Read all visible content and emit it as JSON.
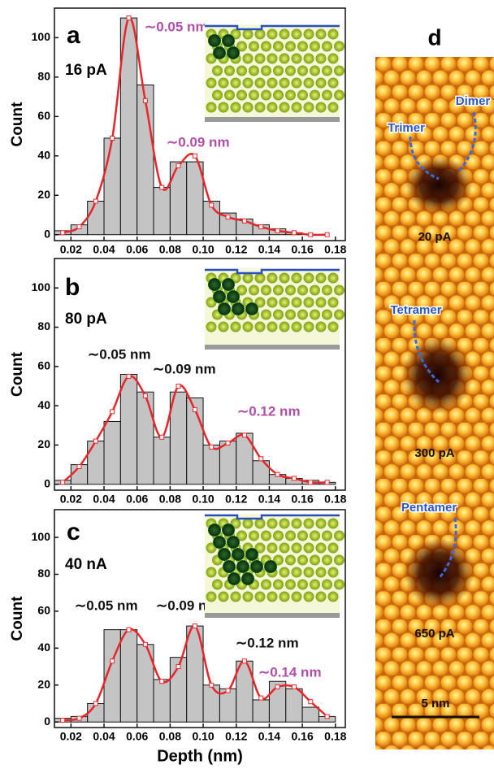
{
  "chart_data": [
    {
      "type": "histogram",
      "label": "a",
      "condition": "16 pA",
      "ylabel": "Count",
      "bins": [
        0.01,
        0.02,
        0.03,
        0.04,
        0.05,
        0.06,
        0.07,
        0.08,
        0.09,
        0.1,
        0.11,
        0.12,
        0.13,
        0.14,
        0.15,
        0.16,
        0.17,
        0.18
      ],
      "values": [
        2,
        5,
        17,
        49,
        110,
        76,
        24,
        37,
        37,
        17,
        11,
        8,
        5,
        3,
        1,
        0,
        0
      ],
      "color": "#c4c4c4",
      "fit": {
        "color": "#e8262a",
        "x": [
          0.015,
          0.025,
          0.035,
          0.045,
          0.055,
          0.065,
          0.075,
          0.085,
          0.095,
          0.105,
          0.115,
          0.125,
          0.135,
          0.145,
          0.155,
          0.165,
          0.175
        ],
        "values": [
          1,
          4,
          17,
          49,
          110,
          68,
          24,
          35,
          40,
          15,
          9,
          7,
          4,
          2,
          1,
          0,
          0
        ]
      },
      "annotations": [
        {
          "text": "∼0.05 nm",
          "color": "#b04fa8"
        },
        {
          "text": "∼0.09 nm",
          "color": "#b04fa8"
        }
      ],
      "xlim": [
        0.01,
        0.186
      ],
      "ylim": [
        -3,
        115
      ],
      "xticks": [
        0.02,
        0.04,
        0.06,
        0.08,
        0.1,
        0.12,
        0.14,
        0.16,
        0.18
      ],
      "yticks": [
        0,
        20,
        40,
        60,
        80,
        100
      ]
    },
    {
      "type": "histogram",
      "label": "b",
      "condition": "80 pA",
      "ylabel": "Count",
      "bins": [
        0.01,
        0.02,
        0.03,
        0.04,
        0.05,
        0.06,
        0.07,
        0.08,
        0.09,
        0.1,
        0.11,
        0.12,
        0.13,
        0.14,
        0.15,
        0.16,
        0.17,
        0.18
      ],
      "values": [
        2,
        10,
        22,
        32,
        56,
        47,
        24,
        47,
        44,
        20,
        22,
        26,
        12,
        5,
        3,
        2,
        1
      ],
      "color": "#c4c4c4",
      "fit": {
        "color": "#e8262a",
        "x": [
          0.015,
          0.025,
          0.035,
          0.045,
          0.055,
          0.065,
          0.075,
          0.085,
          0.095,
          0.105,
          0.115,
          0.125,
          0.135,
          0.145,
          0.155,
          0.165,
          0.175
        ],
        "values": [
          1,
          9,
          22,
          37,
          55,
          45,
          24,
          50,
          38,
          19,
          21,
          25,
          13,
          5,
          3,
          1,
          1
        ]
      },
      "annotations": [
        {
          "text": "∼0.05 nm",
          "color": "#111111"
        },
        {
          "text": "∼0.09 nm",
          "color": "#111111"
        },
        {
          "text": "∼0.12 nm",
          "color": "#b04fa8"
        }
      ],
      "xlim": [
        0.01,
        0.186
      ],
      "ylim": [
        -3,
        115
      ],
      "xticks": [
        0.02,
        0.04,
        0.06,
        0.08,
        0.1,
        0.12,
        0.14,
        0.16,
        0.18
      ],
      "yticks": [
        0,
        20,
        40,
        60,
        80,
        100
      ]
    },
    {
      "type": "histogram",
      "label": "c",
      "condition": "40 nA",
      "ylabel": "Count",
      "xlabel": "Depth (nm)",
      "bins": [
        0.01,
        0.02,
        0.03,
        0.04,
        0.05,
        0.06,
        0.07,
        0.08,
        0.09,
        0.1,
        0.11,
        0.12,
        0.13,
        0.14,
        0.15,
        0.16,
        0.17,
        0.18
      ],
      "values": [
        2,
        3,
        10,
        50,
        50,
        42,
        23,
        35,
        52,
        20,
        18,
        33,
        12,
        22,
        18,
        8,
        3
      ],
      "color": "#c4c4c4",
      "fit": {
        "color": "#e8262a",
        "x": [
          0.015,
          0.025,
          0.035,
          0.045,
          0.055,
          0.065,
          0.075,
          0.085,
          0.095,
          0.105,
          0.115,
          0.125,
          0.135,
          0.145,
          0.155,
          0.165,
          0.175
        ],
        "values": [
          1,
          2,
          10,
          33,
          50,
          42,
          22,
          30,
          52,
          20,
          17,
          33,
          13,
          19,
          19,
          11,
          3
        ]
      },
      "annotations": [
        {
          "text": "∼0.05 nm",
          "color": "#111111"
        },
        {
          "text": "∼0.09 nm",
          "color": "#111111"
        },
        {
          "text": "∼0.12 nm",
          "color": "#111111"
        },
        {
          "text": "∼0.14 nm",
          "color": "#b04fa8"
        }
      ],
      "xlim": [
        0.01,
        0.186
      ],
      "ylim": [
        -3,
        115
      ],
      "xticks": [
        0.02,
        0.04,
        0.06,
        0.08,
        0.1,
        0.12,
        0.14,
        0.16,
        0.18
      ],
      "yticks": [
        0,
        20,
        40,
        60,
        80,
        100
      ]
    }
  ],
  "panel_d": {
    "label": "d",
    "labels": [
      "Dimer",
      "Trimer",
      "20 pA",
      "Tetramer",
      "300 pA",
      "Pentamer",
      "650 pA"
    ],
    "scale_bar": "5 nm"
  }
}
